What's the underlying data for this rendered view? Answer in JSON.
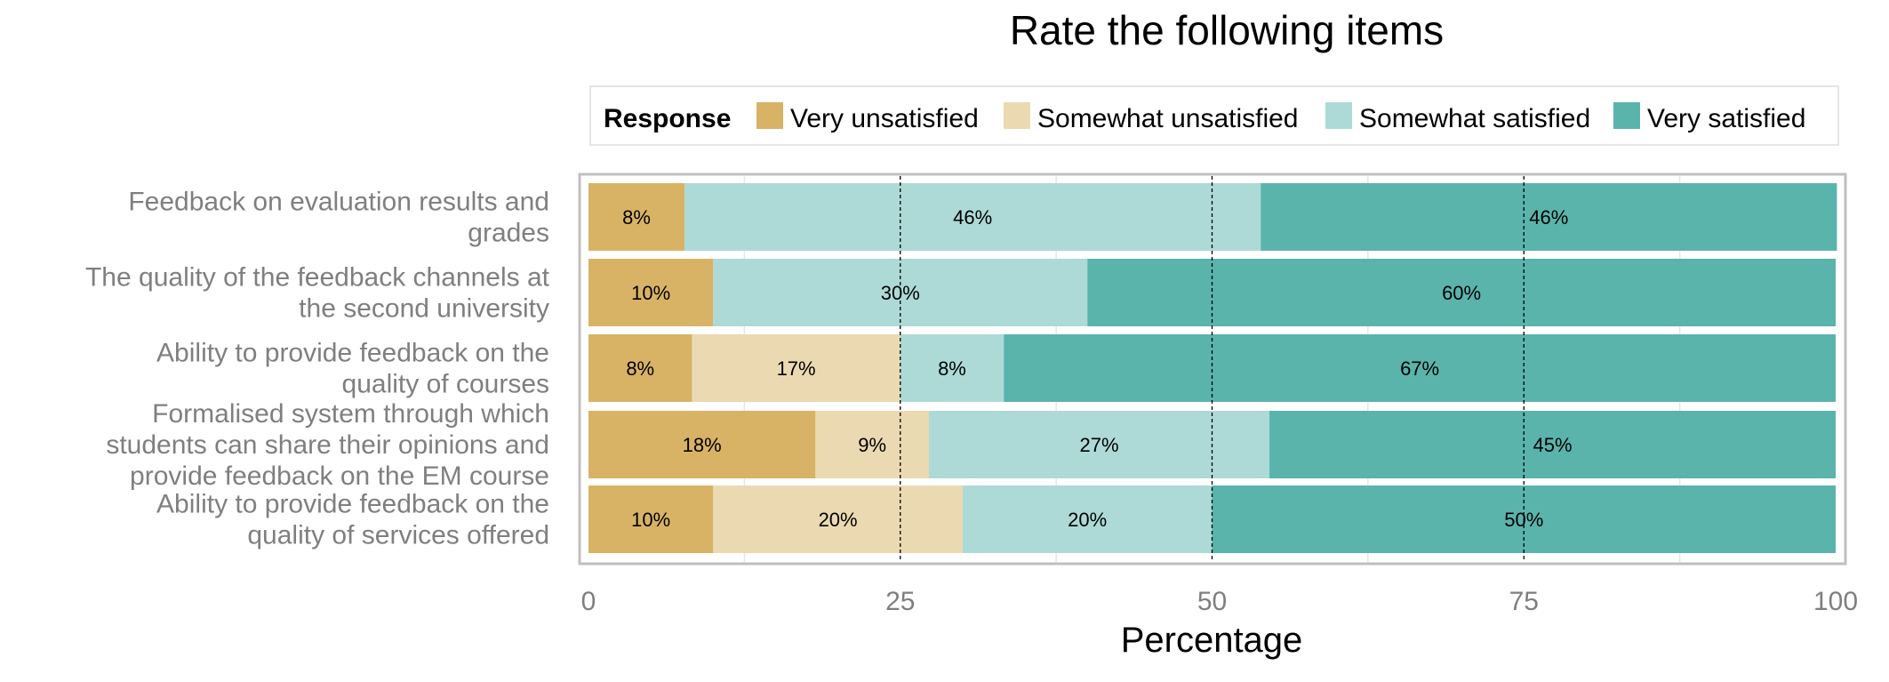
{
  "chart_data": {
    "type": "bar",
    "orientation": "horizontal",
    "stacked": true,
    "title": "Rate the following items",
    "xlabel": "Percentage",
    "ylabel": "",
    "xlim": [
      0,
      100
    ],
    "xticks": [
      0,
      25,
      50,
      75,
      100
    ],
    "grid": true,
    "legend_position": "top",
    "legend_title": "Response",
    "categories": [
      "Feedback on evaluation results and grades",
      "The quality of the feedback channels at the second university",
      "Ability to provide feedback on the quality of courses",
      "Formalised system through which students can share their opinions and provide feedback on the EM course",
      "Ability to provide feedback on the quality of services offered"
    ],
    "category_lines": [
      [
        "Feedback on evaluation results and",
        "grades"
      ],
      [
        "The quality of the feedback channels at",
        "the second university"
      ],
      [
        "Ability to provide feedback on the",
        "quality of courses"
      ],
      [
        "Formalised system through which",
        "students can share their opinions and",
        "provide feedback on the EM course"
      ],
      [
        "Ability to provide feedback on the",
        "quality of services offered"
      ]
    ],
    "series": [
      {
        "name": "Very unsatisfied",
        "color": "#D8B365",
        "values": [
          7.7,
          10,
          8.3,
          18.2,
          10
        ],
        "labels": [
          "8%",
          "10%",
          "8%",
          "18%",
          "10%"
        ]
      },
      {
        "name": "Somewhat unsatisfied",
        "color": "#EBD9B1",
        "values": [
          0,
          0,
          16.7,
          9.1,
          20
        ],
        "labels": [
          "",
          "",
          "17%",
          "9%",
          "20%"
        ]
      },
      {
        "name": "Somewhat satisfied",
        "color": "#ADDAD6",
        "values": [
          46.2,
          30,
          8.3,
          27.3,
          20
        ],
        "labels": [
          "46%",
          "30%",
          "8%",
          "27%",
          "20%"
        ]
      },
      {
        "name": "Very satisfied",
        "color": "#5AB4AC",
        "values": [
          46.2,
          60,
          66.7,
          45.4,
          50
        ],
        "labels": [
          "46%",
          "60%",
          "67%",
          "45%",
          "50%"
        ]
      }
    ]
  }
}
